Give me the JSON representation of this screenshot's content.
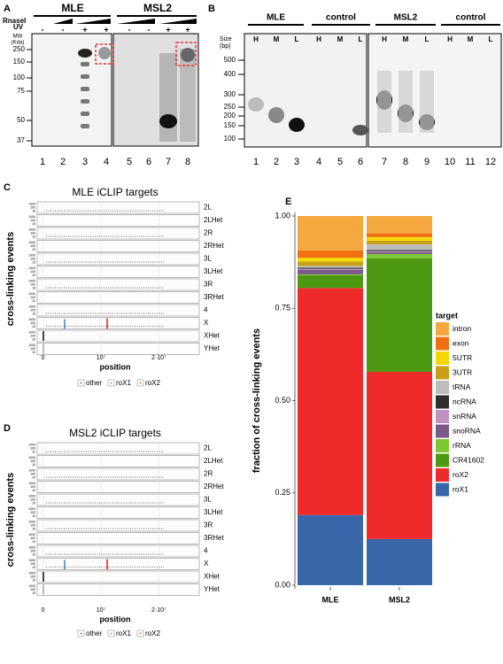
{
  "panel_a": {
    "letter": "A",
    "rnase_label": "RnaseI",
    "uv_label": "UV",
    "mw_label": "MW",
    "mw_unit": "(Kda)",
    "groups": [
      "MLE",
      "MSL2"
    ],
    "uv_signs": [
      "-",
      "-",
      "+",
      "+",
      "-",
      "-",
      "+",
      "+"
    ],
    "markers": [
      250,
      150,
      100,
      75,
      50,
      37
    ],
    "lanes": [
      "1",
      "2",
      "3",
      "4",
      "5",
      "6",
      "7",
      "8"
    ]
  },
  "panel_b": {
    "letter": "B",
    "size_label": "Size",
    "size_unit": "(bp)",
    "groups": [
      "MLE",
      "control",
      "MSL2",
      "control"
    ],
    "fractions": [
      "H",
      "M",
      "L",
      "H",
      "M",
      "L",
      "H",
      "M",
      "L",
      "H",
      "M",
      "L"
    ],
    "markers": [
      500,
      400,
      300,
      250,
      200,
      150,
      100
    ],
    "lanes": [
      "1",
      "2",
      "3",
      "4",
      "5",
      "6",
      "7",
      "8",
      "9",
      "10",
      "11",
      "12"
    ]
  },
  "panel_c": {
    "letter": "C",
    "title": "MLE iCLIP targets",
    "ylabel": "cross-linking events",
    "xlabel": "position",
    "tracks": [
      "2L",
      "2LHet",
      "2R",
      "2RHet",
      "3L",
      "3LHet",
      "3R",
      "3RHet",
      "4",
      "X",
      "XHet",
      "YHet"
    ],
    "track_yticks": [
      1000,
      100,
      10
    ],
    "xlim": [
      -1000000,
      27000000
    ],
    "xticks": [
      0,
      {
        "value": 10000000,
        "label": "10⁷"
      },
      {
        "value": 20000000,
        "label": "2·10⁷"
      }
    ],
    "legend": [
      "other",
      "roX1",
      "roX2"
    ]
  },
  "panel_d": {
    "letter": "D",
    "title": "MSL2 iCLIP targets",
    "ylabel": "cross-linking events",
    "xlabel": "position",
    "tracks": [
      "2L",
      "2LHet",
      "2R",
      "2RHet",
      "3L",
      "3LHet",
      "3R",
      "3RHet",
      "4",
      "X",
      "XHet",
      "YHet"
    ],
    "track_yticks": [
      1000,
      100,
      10
    ],
    "xlim": [
      -1000000,
      27000000
    ],
    "xticks": [
      0,
      {
        "value": 10000000,
        "label": "10⁷"
      },
      {
        "value": 20000000,
        "label": "2·10⁷"
      }
    ],
    "legend": [
      "other",
      "roX1",
      "roX2"
    ]
  },
  "chart_data": {
    "type": "stacked_bar",
    "letter": "E",
    "ylabel": "fraction of cross-linking events",
    "legend_title": "target",
    "categories": [
      "MLE",
      "MSL2"
    ],
    "ylim": [
      0,
      1
    ],
    "yticks": [
      {
        "value": 0,
        "label": "0.00"
      },
      {
        "value": 0.25,
        "label": "0.25"
      },
      {
        "value": 0.5,
        "label": "0.50"
      },
      {
        "value": 0.75,
        "label": "0.75"
      },
      {
        "value": 1,
        "label": "1.00"
      }
    ],
    "series": [
      {
        "name": "roX1",
        "color": "#3a66aa",
        "values": [
          0.19,
          0.125
        ]
      },
      {
        "name": "roX2",
        "color": "#ee2a2a",
        "values": [
          0.615,
          0.453
        ]
      },
      {
        "name": "CR41602",
        "color": "#4d9a12",
        "values": [
          0.035,
          0.307
        ]
      },
      {
        "name": "rRNA",
        "color": "#7dc832",
        "values": [
          0.002,
          0.012
        ]
      },
      {
        "name": "snoRNA",
        "color": "#7a5a8a",
        "values": [
          0.012,
          0.005
        ]
      },
      {
        "name": "snRNA",
        "color": "#c090c0",
        "values": [
          0.003,
          0.003
        ]
      },
      {
        "name": "ncRNA",
        "color": "#2e2e2e",
        "values": [
          0.003,
          0.003
        ]
      },
      {
        "name": "tRNA",
        "color": "#bdbdbd",
        "values": [
          0.005,
          0.015
        ]
      },
      {
        "name": "3UTR",
        "color": "#c8a018",
        "values": [
          0.012,
          0.01
        ]
      },
      {
        "name": "5UTR",
        "color": "#f5d800",
        "values": [
          0.01,
          0.01
        ]
      },
      {
        "name": "exon",
        "color": "#f07010",
        "values": [
          0.02,
          0.01
        ]
      },
      {
        "name": "intron",
        "color": "#f5a840",
        "values": [
          0.093,
          0.047
        ]
      }
    ]
  }
}
